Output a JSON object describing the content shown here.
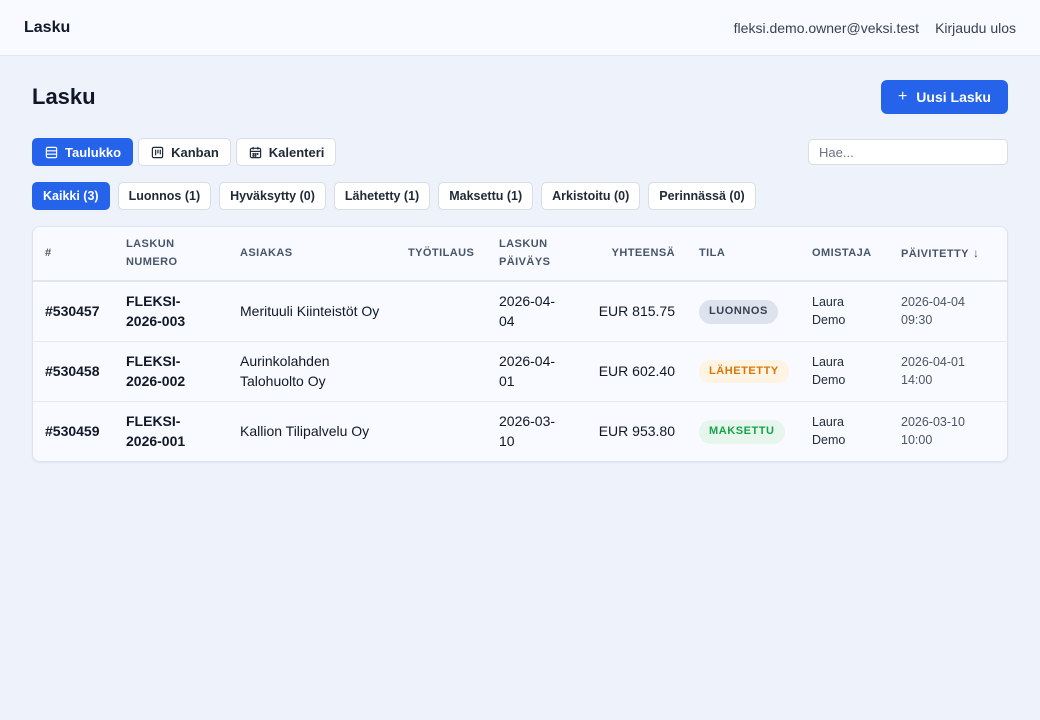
{
  "topbar": {
    "brand": "Lasku",
    "user_email": "fleksi.demo.owner@veksi.test",
    "logout_label": "Kirjaudu ulos"
  },
  "page": {
    "title": "Lasku",
    "new_button_label": "Uusi Lasku"
  },
  "views": {
    "table_label": "Taulukko",
    "kanban_label": "Kanban",
    "calendar_label": "Kalenteri"
  },
  "search": {
    "placeholder": "Hae...",
    "value": ""
  },
  "filters": [
    "Kaikki (3)",
    "Luonnos (1)",
    "Hyväksytty (0)",
    "Lähetetty (1)",
    "Maksettu (1)",
    "Arkistoitu (0)",
    "Perinnässä (0)"
  ],
  "table": {
    "headers": {
      "id": "#",
      "number_line1": "LASKUN",
      "number_line2": "NUMERO",
      "customer": "ASIAKAS",
      "work_order": "TYÖTILAUS",
      "date_line1": "LASKUN",
      "date_line2": "PÄIVÄYS",
      "total": "YHTEENSÄ",
      "status": "TILA",
      "owner": "OMISTAJA",
      "updated": "PÄIVITETTY"
    },
    "rows": [
      {
        "id": "#530457",
        "number": "FLEKSI-2026-003",
        "customer": "Merituuli Kiinteistöt Oy",
        "work_order": "",
        "date": "2026-04-04",
        "total": "EUR 815.75",
        "status": "LUONNOS",
        "owner": "Laura Demo",
        "updated": "2026-04-04 09:30"
      },
      {
        "id": "#530458",
        "number": "FLEKSI-2026-002",
        "customer": "Aurinkolahden Talohuolto Oy",
        "work_order": "",
        "date": "2026-04-01",
        "total": "EUR 602.40",
        "status": "LÄHETETTY",
        "owner": "Laura Demo",
        "updated": "2026-04-01 14:00"
      },
      {
        "id": "#530459",
        "number": "FLEKSI-2026-001",
        "customer": "Kallion Tilipalvelu Oy",
        "work_order": "",
        "date": "2026-03-10",
        "total": "EUR 953.80",
        "status": "MAKSETTU",
        "owner": "Laura Demo",
        "updated": "2026-03-10 10:00"
      }
    ]
  },
  "colors": {
    "accent": "#2563eb",
    "status_luonnos": "#374151",
    "status_lahetetty": "#d97706",
    "status_maksettu": "#16a34a"
  }
}
